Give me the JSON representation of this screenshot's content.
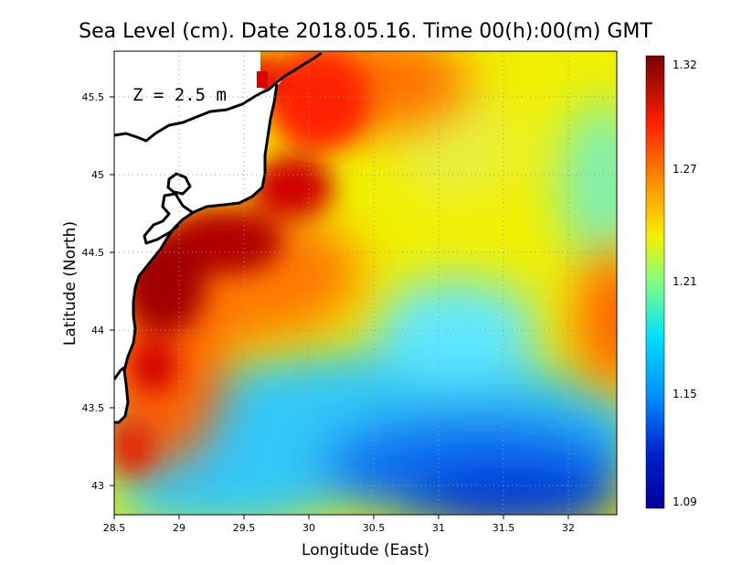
{
  "title": "Sea Level (cm). Date 2018.05.16. Time 00(h):00(m) GMT",
  "depth_label": "Z = 2.5 m",
  "xlabel": "Longitude (East)",
  "ylabel": "Latitude (North)",
  "x_ticks": [
    "28.5",
    "29",
    "29.5",
    "30",
    "30.5",
    "31",
    "31.5",
    "32"
  ],
  "y_ticks": [
    "43",
    "43.5",
    "44",
    "44.5",
    "45",
    "45.5"
  ],
  "colorbar": {
    "labels": [
      "1.32",
      "1.27",
      "1.21",
      "1.15",
      "1.09"
    ],
    "stops": [
      "#7a0000",
      "#ff2000",
      "#ffa000",
      "#f5f000",
      "#80ff80",
      "#00e0ff",
      "#0090ff",
      "#0020d0",
      "#00009a"
    ]
  },
  "chart_data": {
    "type": "heatmap",
    "title": "Sea Level (cm). Date 2018.05.16. Time 00(h):00(m) GMT",
    "xlabel": "Longitude (East)",
    "ylabel": "Latitude (North)",
    "xlim": [
      28.5,
      32.4
    ],
    "ylim": [
      42.8,
      45.8
    ],
    "value_range": [
      1.09,
      1.32
    ],
    "grid": true,
    "colors": {
      "land": "#ffffff",
      "coastline": "#000000",
      "max": "#7a0000",
      "min": "#00009a"
    }
  }
}
